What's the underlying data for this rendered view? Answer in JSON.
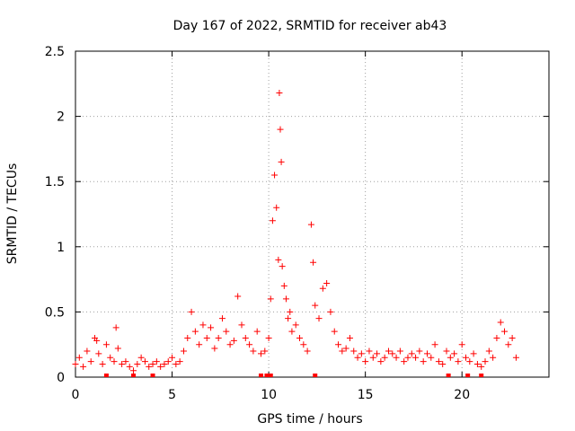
{
  "chart_data": {
    "type": "scatter",
    "title": "Day 167 of 2022, SRMTID for receiver ab43",
    "xlabel": "GPS time / hours",
    "ylabel": "SRMTID / TECUs",
    "xlim": [
      0,
      24.5
    ],
    "ylim": [
      0,
      2.5
    ],
    "xticks": [
      0,
      5,
      10,
      15,
      20
    ],
    "xtick_labels": [
      "0",
      "5",
      "10",
      "15",
      "20"
    ],
    "yticks": [
      0,
      0.5,
      1,
      1.5,
      2,
      2.5
    ],
    "ytick_labels": [
      "0",
      "0.5",
      "1",
      "1.5",
      "2",
      "2.5"
    ],
    "grid": true,
    "marker": "+",
    "color": "#ff0000",
    "series": [
      {
        "name": "ab43",
        "x": [
          0.0,
          0.2,
          0.4,
          0.6,
          0.8,
          1.0,
          1.1,
          1.2,
          1.4,
          1.6,
          1.8,
          2.0,
          2.1,
          2.2,
          2.4,
          2.6,
          2.8,
          3.0,
          3.2,
          3.4,
          3.6,
          3.8,
          4.0,
          4.2,
          4.4,
          4.6,
          4.8,
          5.0,
          5.2,
          5.4,
          5.6,
          5.8,
          6.0,
          6.2,
          6.4,
          6.6,
          6.8,
          7.0,
          7.2,
          7.4,
          7.6,
          7.8,
          8.0,
          8.2,
          8.4,
          8.6,
          8.8,
          9.0,
          9.2,
          9.4,
          9.6,
          9.8,
          10.0,
          10.1,
          10.2,
          10.3,
          10.4,
          10.5,
          10.55,
          10.6,
          10.65,
          10.7,
          10.8,
          10.9,
          11.0,
          11.1,
          11.2,
          11.4,
          11.6,
          11.8,
          12.0,
          12.2,
          12.3,
          12.4,
          12.6,
          12.8,
          13.0,
          13.2,
          13.4,
          13.6,
          13.8,
          14.0,
          14.2,
          14.4,
          14.6,
          14.8,
          15.0,
          15.2,
          15.4,
          15.6,
          15.8,
          16.0,
          16.2,
          16.4,
          16.6,
          16.8,
          17.0,
          17.2,
          17.4,
          17.6,
          17.8,
          18.0,
          18.2,
          18.4,
          18.6,
          18.8,
          19.0,
          19.2,
          19.4,
          19.6,
          19.8,
          20.0,
          20.2,
          20.4,
          20.6,
          20.8,
          21.0,
          21.2,
          21.4,
          21.6,
          21.8,
          22.0,
          22.2,
          22.4,
          22.6,
          22.8
        ],
        "y": [
          0.1,
          0.15,
          0.08,
          0.2,
          0.12,
          0.3,
          0.28,
          0.18,
          0.1,
          0.25,
          0.15,
          0.12,
          0.38,
          0.22,
          0.1,
          0.12,
          0.08,
          0.05,
          0.1,
          0.15,
          0.12,
          0.08,
          0.1,
          0.12,
          0.08,
          0.1,
          0.12,
          0.15,
          0.1,
          0.12,
          0.2,
          0.3,
          0.5,
          0.35,
          0.25,
          0.4,
          0.3,
          0.38,
          0.22,
          0.3,
          0.45,
          0.35,
          0.25,
          0.28,
          0.62,
          0.4,
          0.3,
          0.25,
          0.2,
          0.35,
          0.18,
          0.2,
          0.3,
          0.6,
          1.2,
          1.55,
          1.3,
          0.9,
          2.18,
          1.9,
          1.65,
          0.85,
          0.7,
          0.6,
          0.45,
          0.5,
          0.35,
          0.4,
          0.3,
          0.25,
          0.2,
          1.17,
          0.88,
          0.55,
          0.45,
          0.68,
          0.72,
          0.5,
          0.35,
          0.25,
          0.2,
          0.22,
          0.3,
          0.2,
          0.15,
          0.18,
          0.12,
          0.2,
          0.15,
          0.18,
          0.12,
          0.15,
          0.2,
          0.18,
          0.15,
          0.2,
          0.12,
          0.15,
          0.18,
          0.15,
          0.2,
          0.12,
          0.18,
          0.15,
          0.25,
          0.12,
          0.1,
          0.2,
          0.15,
          0.18,
          0.12,
          0.25,
          0.15,
          0.12,
          0.18,
          0.1,
          0.08,
          0.12,
          0.2,
          0.15,
          0.3,
          0.42,
          0.35,
          0.25,
          0.3,
          0.15
        ],
        "baseline_x": [
          1.6,
          3.0,
          4.0,
          9.6,
          9.9,
          10.1,
          12.4,
          19.3,
          20.3,
          21.0
        ]
      }
    ]
  }
}
